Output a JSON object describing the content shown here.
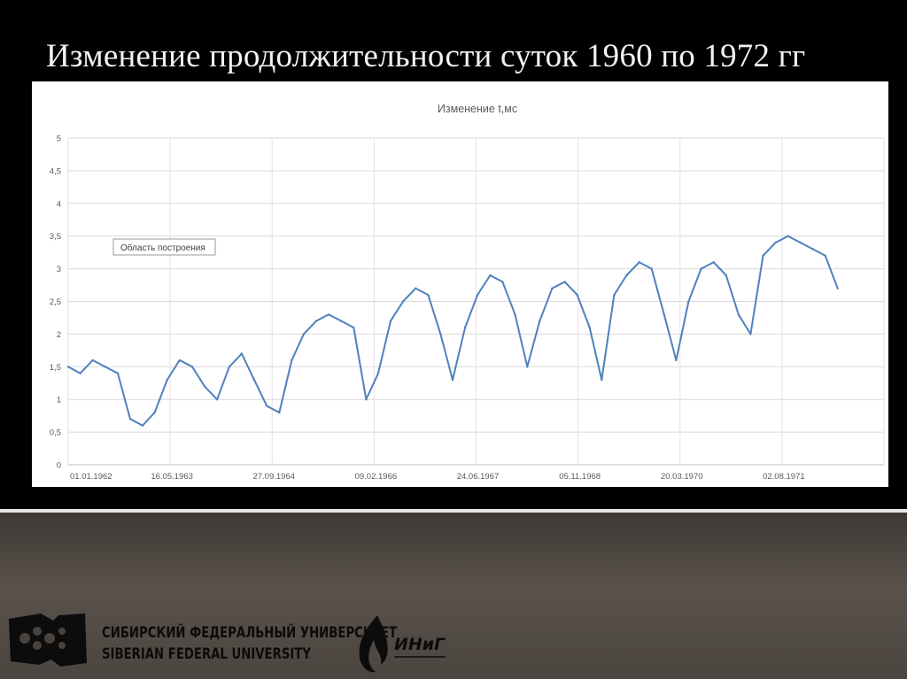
{
  "slide": {
    "title": "Изменение продолжительности суток 1960 по 1972 гг"
  },
  "chart_data": {
    "type": "line",
    "title": "Изменение t,мс",
    "xlabel": "",
    "ylabel": "",
    "ylim": [
      0,
      5
    ],
    "y_ticks": [
      "0",
      "0,5",
      "1",
      "1,5",
      "2",
      "2,5",
      "3",
      "3,5",
      "4",
      "4,5",
      "5"
    ],
    "x_tick_labels": [
      "01.01.1962",
      "16.05.1963",
      "27.09.1964",
      "09.02.1966",
      "24.06.1967",
      "05.11.1968",
      "20.03.1970",
      "02.08.1971"
    ],
    "grid": true,
    "tooltip_text": "Область построения",
    "line_color": "#4f81bd",
    "series": [
      {
        "x": [
          "01.01.1962",
          "01.03.1962",
          "01.05.1962",
          "01.07.1962",
          "01.09.1962",
          "01.11.1962",
          "01.01.1963",
          "01.03.1963",
          "01.05.1963",
          "01.07.1963",
          "01.09.1963",
          "01.11.1963",
          "01.01.1964",
          "01.03.1964",
          "01.05.1964",
          "01.07.1964",
          "01.09.1964",
          "01.11.1964",
          "01.01.1965",
          "01.03.1965",
          "01.05.1965",
          "01.07.1965",
          "01.09.1965",
          "01.11.1965",
          "01.01.1966",
          "01.03.1966",
          "01.05.1966",
          "01.07.1966",
          "01.09.1966",
          "01.11.1966",
          "01.01.1967",
          "01.03.1967",
          "01.05.1967",
          "01.07.1967",
          "01.09.1967",
          "01.11.1967",
          "01.01.1968",
          "01.03.1968",
          "01.05.1968",
          "01.07.1968",
          "01.09.1968",
          "01.11.1968",
          "01.01.1969",
          "01.03.1969",
          "01.05.1969",
          "01.07.1969",
          "01.09.1969",
          "01.11.1969",
          "01.01.1970",
          "01.03.1970",
          "01.05.1970",
          "01.07.1970",
          "01.09.1970",
          "01.11.1970",
          "01.01.1971",
          "01.03.1971",
          "01.05.1971",
          "01.07.1971",
          "01.09.1971",
          "01.11.1971",
          "01.01.1972",
          "01.03.1972",
          "01.05.1972"
        ],
        "values": [
          1.5,
          1.4,
          1.6,
          1.5,
          1.4,
          0.7,
          0.6,
          0.8,
          1.3,
          1.6,
          1.5,
          1.2,
          1.0,
          1.5,
          1.7,
          1.3,
          0.9,
          0.8,
          1.6,
          2.0,
          2.2,
          2.3,
          2.2,
          2.1,
          1.0,
          1.4,
          2.2,
          2.5,
          2.7,
          2.6,
          2.0,
          1.3,
          2.1,
          2.6,
          2.9,
          2.8,
          2.3,
          1.5,
          2.2,
          2.7,
          2.8,
          2.6,
          2.1,
          1.3,
          2.6,
          2.9,
          3.1,
          3.0,
          2.3,
          1.6,
          2.5,
          3.0,
          3.1,
          2.9,
          2.3,
          2.0,
          3.2,
          3.4,
          3.5,
          3.4,
          3.3,
          3.2,
          2.7
        ]
      }
    ]
  },
  "footer": {
    "university_ru": "СИБИРСКИЙ ФЕДЕРАЛЬНЫЙ УНИВЕРСИТЕТ",
    "university_en": "SIBERIAN FEDERAL UNIVERSITY",
    "institute": "ИНиГ"
  }
}
